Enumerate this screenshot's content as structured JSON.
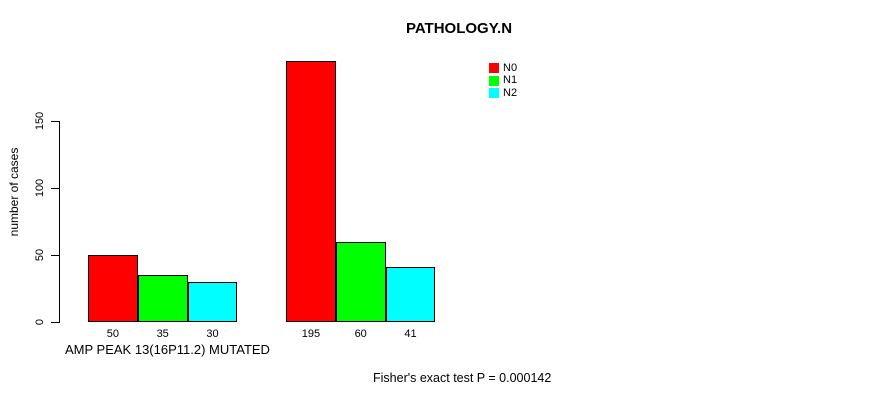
{
  "chart_data": {
    "type": "bar",
    "title": "PATHOLOGY.N",
    "ylabel": "number of cases",
    "xlabel": "AMP PEAK 13(16P11.2) MUTATED",
    "annotation": "Fisher's exact test P = 0.000142",
    "ylim": [
      0,
      150
    ],
    "yticks": [
      0,
      50,
      100,
      150
    ],
    "grid": false,
    "legend_position": "top-right",
    "series": [
      {
        "name": "N0",
        "color": "#ff0000"
      },
      {
        "name": "N1",
        "color": "#00ff00"
      },
      {
        "name": "N2",
        "color": "#00ffff"
      }
    ],
    "groups": [
      {
        "values": [
          50,
          35,
          30
        ],
        "labels": [
          "50",
          "35",
          "30"
        ]
      },
      {
        "values": [
          195,
          60,
          41
        ],
        "labels": [
          "195",
          "60",
          "41"
        ]
      }
    ],
    "colors": {
      "background": "#ffffff",
      "axis": "#000000",
      "text": "#000000"
    }
  }
}
